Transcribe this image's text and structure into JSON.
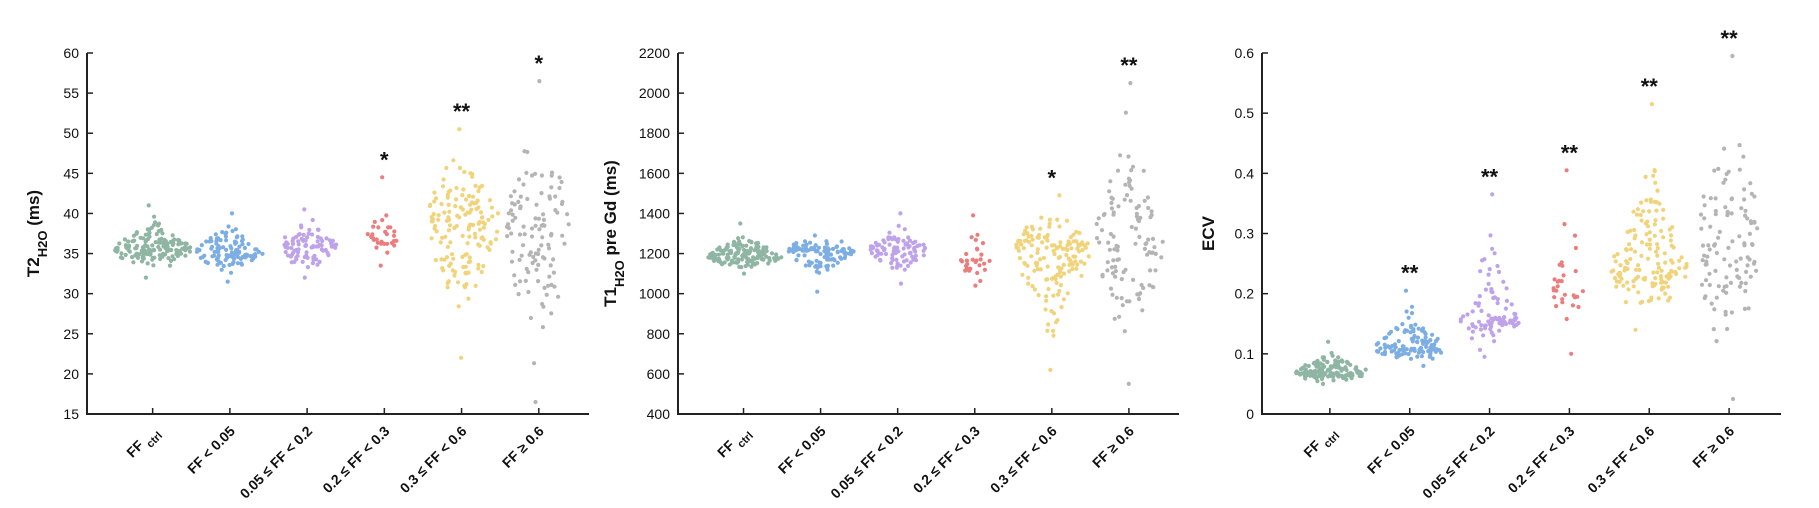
{
  "chart_data": [
    {
      "type": "scatter",
      "style": "swarm",
      "title": "",
      "ylabel": "T2",
      "ylabel_subscript": "H2O",
      "ylabel_suffix": " (ms)",
      "ylim": [
        15,
        60
      ],
      "yticks": [
        "15",
        "20",
        "25",
        "30",
        "35",
        "40",
        "45",
        "50",
        "55",
        "60"
      ],
      "categories": [
        {
          "main": "FF",
          "sub": "ctrl",
          "rest": ""
        },
        {
          "main": "FF < 0.05",
          "sub": "",
          "rest": ""
        },
        {
          "main": "0.05 ≤ FF < 0.2",
          "sub": "",
          "rest": ""
        },
        {
          "main": "0.2 ≤ FF < 0.3",
          "sub": "",
          "rest": ""
        },
        {
          "main": "0.3 ≤ FF < 0.6",
          "sub": "",
          "rest": ""
        },
        {
          "main": "FF ≥ 0.6",
          "sub": "",
          "rest": ""
        }
      ],
      "significance": [
        "",
        "",
        "",
        "*",
        "**",
        "*"
      ],
      "series": [
        {
          "median": 35.5,
          "min": 32,
          "max": 41,
          "n": 150
        },
        {
          "median": 35.3,
          "min": 31.5,
          "max": 40,
          "n": 110
        },
        {
          "median": 35.8,
          "min": 32,
          "max": 40.5,
          "n": 90
        },
        {
          "median": 37.5,
          "min": 33.5,
          "max": 44.5,
          "n": 30
        },
        {
          "median": 38.5,
          "min": 22,
          "max": 50.5,
          "n": 150
        },
        {
          "median": 37.5,
          "min": 16.5,
          "max": 56.5,
          "n": 110
        }
      ]
    },
    {
      "type": "scatter",
      "style": "swarm",
      "title": "",
      "ylabel": "T1",
      "ylabel_subscript": "H2O",
      "ylabel_suffix": " pre Gd (ms)",
      "ylim": [
        400,
        2200
      ],
      "yticks": [
        "400",
        "600",
        "800",
        "1000",
        "1200",
        "1400",
        "1600",
        "1800",
        "2000",
        "2200"
      ],
      "categories": [
        {
          "main": "FF",
          "sub": "ctrl",
          "rest": ""
        },
        {
          "main": "FF < 0.05",
          "sub": "",
          "rest": ""
        },
        {
          "main": "0.05 ≤ FF < 0.2",
          "sub": "",
          "rest": ""
        },
        {
          "main": "0.2 ≤ FF < 0.3",
          "sub": "",
          "rest": ""
        },
        {
          "main": "0.3 ≤ FF < 0.6",
          "sub": "",
          "rest": ""
        },
        {
          "main": "FF ≥ 0.6",
          "sub": "",
          "rest": ""
        }
      ],
      "significance": [
        "",
        "",
        "",
        "",
        "*",
        "**"
      ],
      "series": [
        {
          "median": 1185,
          "min": 1100,
          "max": 1350,
          "n": 150
        },
        {
          "median": 1210,
          "min": 1010,
          "max": 1290,
          "n": 110
        },
        {
          "median": 1210,
          "min": 1050,
          "max": 1400,
          "n": 90
        },
        {
          "median": 1170,
          "min": 1040,
          "max": 1390,
          "n": 30
        },
        {
          "median": 1200,
          "min": 620,
          "max": 1490,
          "n": 150
        },
        {
          "median": 1260,
          "min": 550,
          "max": 2050,
          "n": 110
        }
      ]
    },
    {
      "type": "scatter",
      "style": "swarm",
      "title": "",
      "ylabel": "ECV",
      "ylabel_subscript": "",
      "ylabel_suffix": "",
      "ylim": [
        0,
        0.6
      ],
      "yticks": [
        "0",
        "0.1",
        "0.2",
        "0.3",
        "0.4",
        "0.5",
        "0.6"
      ],
      "categories": [
        {
          "main": "FF",
          "sub": "ctrl",
          "rest": ""
        },
        {
          "main": "FF < 0.05",
          "sub": "",
          "rest": ""
        },
        {
          "main": "0.05 ≤ FF < 0.2",
          "sub": "",
          "rest": ""
        },
        {
          "main": "0.2 ≤ FF < 0.3",
          "sub": "",
          "rest": ""
        },
        {
          "main": "0.3 ≤ FF < 0.6",
          "sub": "",
          "rest": ""
        },
        {
          "main": "FF ≥ 0.6",
          "sub": "",
          "rest": ""
        }
      ],
      "significance": [
        "",
        "**",
        "**",
        "**",
        "**",
        "**"
      ],
      "series": [
        {
          "median": 0.07,
          "min": 0.05,
          "max": 0.12,
          "n": 150
        },
        {
          "median": 0.11,
          "min": 0.08,
          "max": 0.205,
          "n": 110
        },
        {
          "median": 0.16,
          "min": 0.095,
          "max": 0.365,
          "n": 90
        },
        {
          "median": 0.21,
          "min": 0.1,
          "max": 0.405,
          "n": 30
        },
        {
          "median": 0.24,
          "min": 0.14,
          "max": 0.515,
          "n": 150
        },
        {
          "median": 0.28,
          "min": 0.025,
          "max": 0.595,
          "n": 110
        }
      ]
    }
  ],
  "colors": [
    "#8fb5a3",
    "#7daee3",
    "#bfa3ea",
    "#ec7d7d",
    "#f1d37a",
    "#b4b4b4"
  ]
}
